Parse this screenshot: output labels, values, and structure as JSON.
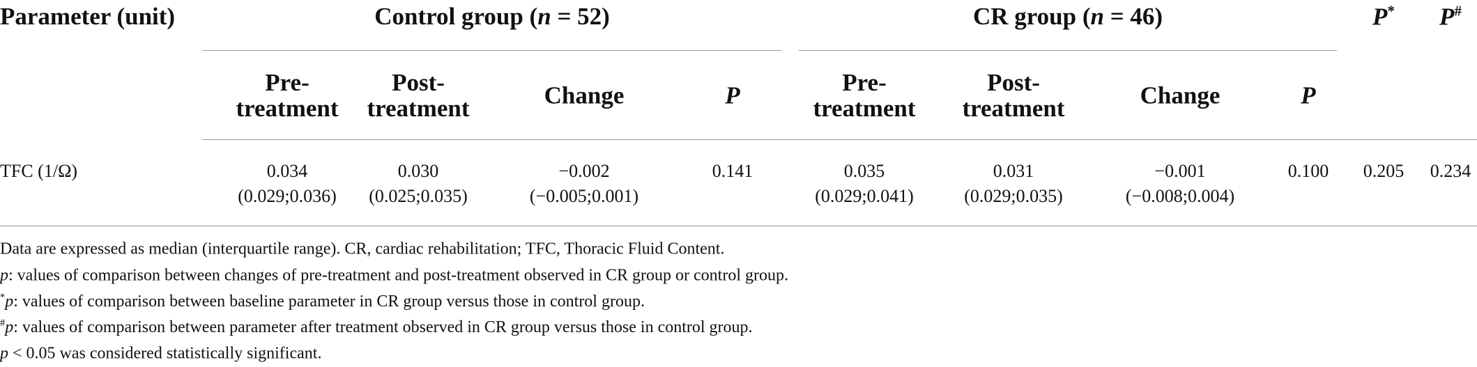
{
  "table": {
    "header": {
      "parameter": "Parameter (unit)",
      "groups": [
        {
          "label": "Control group (",
          "n_symbol": "n",
          "n_text": " = 52)"
        },
        {
          "label": "CR group (",
          "n_symbol": "n",
          "n_text": " = 46)"
        }
      ],
      "p_star": {
        "symbol": "P",
        "mark": "*"
      },
      "p_hash": {
        "symbol": "P",
        "mark": "#"
      },
      "subheaders": [
        [
          "Pre-",
          "treatment"
        ],
        [
          "Post-",
          "treatment"
        ],
        [
          "Change"
        ],
        [
          "P"
        ],
        [
          "Pre-",
          "treatment"
        ],
        [
          "Post-",
          "treatment"
        ],
        [
          "Change"
        ],
        [
          "P"
        ]
      ]
    },
    "rows": [
      {
        "parameter": "TFC (1/Ω)",
        "cells": [
          [
            "0.034",
            "(0.029;0.036)"
          ],
          [
            "0.030",
            "(0.025;0.035)"
          ],
          [
            "−0.002",
            "(−0.005;0.001)"
          ],
          [
            "0.141"
          ],
          [
            "0.035",
            "(0.029;0.041)"
          ],
          [
            "0.031",
            "(0.029;0.035)"
          ],
          [
            "−0.001",
            "(−0.008;0.004)"
          ],
          [
            "0.100"
          ],
          [
            "0.205"
          ],
          [
            "0.234"
          ]
        ]
      }
    ]
  },
  "footnotes": [
    {
      "text": "Data are expressed as median (interquartile range). CR, cardiac rehabilitation; TFC, Thoracic Fluid Content."
    },
    {
      "symbol": "p",
      "text": ": values of comparison between changes of pre-treatment and post-treatment observed in CR group or control group."
    },
    {
      "mark": "*",
      "symbol": "p",
      "text": ": values of comparison between baseline parameter in CR group versus those in control group."
    },
    {
      "mark": "#",
      "symbol": "p",
      "text": ": values of comparison between parameter after treatment observed in CR group versus those in control group."
    },
    {
      "symbol": "p",
      "text": " < 0.05 was considered statistically significant."
    }
  ]
}
